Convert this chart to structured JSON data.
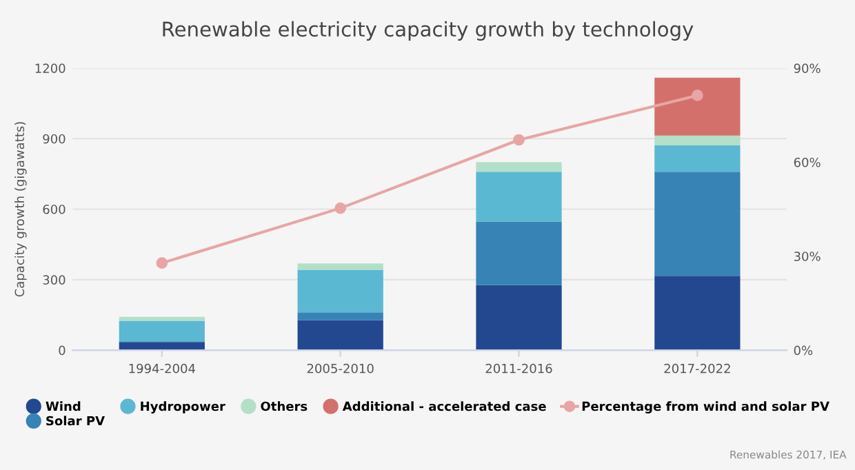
{
  "chart_data": {
    "type": "bar",
    "title": "Renewable electricity capacity growth by technology",
    "ylabel": "Capacity growth (gigawatts)",
    "categories": [
      "1994-2004",
      "2005-2010",
      "2011-2016",
      "2017-2022"
    ],
    "stacked": true,
    "series": [
      {
        "name": "Wind",
        "color": "#23488f",
        "values": [
          35,
          127,
          277,
          316
        ]
      },
      {
        "name": "Solar PV",
        "color": "#3783b5",
        "values": [
          3,
          34,
          270,
          443
        ]
      },
      {
        "name": "Hydropower",
        "color": "#5ab8d2",
        "values": [
          87,
          181,
          212,
          112
        ]
      },
      {
        "name": "Others",
        "color": "#b3dfc9",
        "values": [
          17,
          27,
          41,
          42
        ]
      },
      {
        "name": "Additional - accelerated case",
        "color": "#d4706b",
        "values": [
          0,
          0,
          0,
          246
        ]
      },
      {
        "name": "Percentage from wind and solar PV",
        "type": "line",
        "axis": "y2",
        "color": "#e8a5a5",
        "marker": "circle",
        "values": [
          27.8,
          45.3,
          67.1,
          81.3
        ]
      }
    ],
    "ylim": [
      0,
      1200
    ],
    "yticks": [
      0,
      300,
      600,
      900,
      1200
    ],
    "y2lim": [
      0,
      90
    ],
    "y2ticks": [
      {
        "value": 0,
        "label": "0%"
      },
      {
        "value": 30,
        "label": "30%"
      },
      {
        "value": 60,
        "label": "60%"
      },
      {
        "value": 90,
        "label": "90%"
      }
    ],
    "grid": "y",
    "legend": "bottom",
    "annotations": [
      "Renewables 2017, IEA"
    ]
  }
}
